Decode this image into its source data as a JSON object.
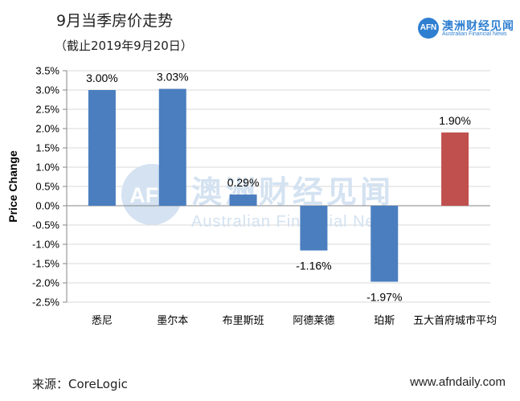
{
  "header": {
    "title": "9月当季房价走势",
    "subtitle": "（截止2019年9月20日）"
  },
  "logo": {
    "mark": "AFN",
    "name": "澳洲财经见闻",
    "tagline": "Australian Financial News"
  },
  "watermark": {
    "mark": "AFN",
    "name": "澳洲财经见闻",
    "tagline": "Australian Financial News"
  },
  "footer": {
    "source": "来源：CoreLogic",
    "site": "www.afndaily.com"
  },
  "colors": {
    "bar_default": "#4a7ebf",
    "bar_highlight": "#c0504d",
    "watermark": "#d4e2f1"
  },
  "chart_data": {
    "type": "bar",
    "title": "9月当季房价走势",
    "subtitle": "（截止2019年9月20日）",
    "ylabel": "Price Change",
    "xlabel": "",
    "ylim": [
      -2.5,
      3.5
    ],
    "yticks": [
      3.5,
      3.0,
      2.5,
      2.0,
      1.5,
      1.0,
      0.5,
      0.0,
      -0.5,
      -1.0,
      -1.5,
      -2.0,
      -2.5
    ],
    "ytick_labels": [
      "3.5%",
      "3.0%",
      "2.5%",
      "2.0%",
      "1.5%",
      "1.0%",
      "0.5%",
      "0.0%",
      "-0.5%",
      "-1.0%",
      "-1.5%",
      "-2.0%",
      "-2.5%"
    ],
    "grid": true,
    "categories": [
      "悉尼",
      "墨尔本",
      "布里斯班",
      "阿德莱德",
      "珀斯",
      "五大首府城市平均"
    ],
    "values": [
      3.0,
      3.03,
      0.29,
      -1.16,
      -1.97,
      1.9
    ],
    "value_labels": [
      "3.00%",
      "3.03%",
      "0.29%",
      "-1.16%",
      "-1.97%",
      "1.90%"
    ],
    "highlight_index": 5
  }
}
